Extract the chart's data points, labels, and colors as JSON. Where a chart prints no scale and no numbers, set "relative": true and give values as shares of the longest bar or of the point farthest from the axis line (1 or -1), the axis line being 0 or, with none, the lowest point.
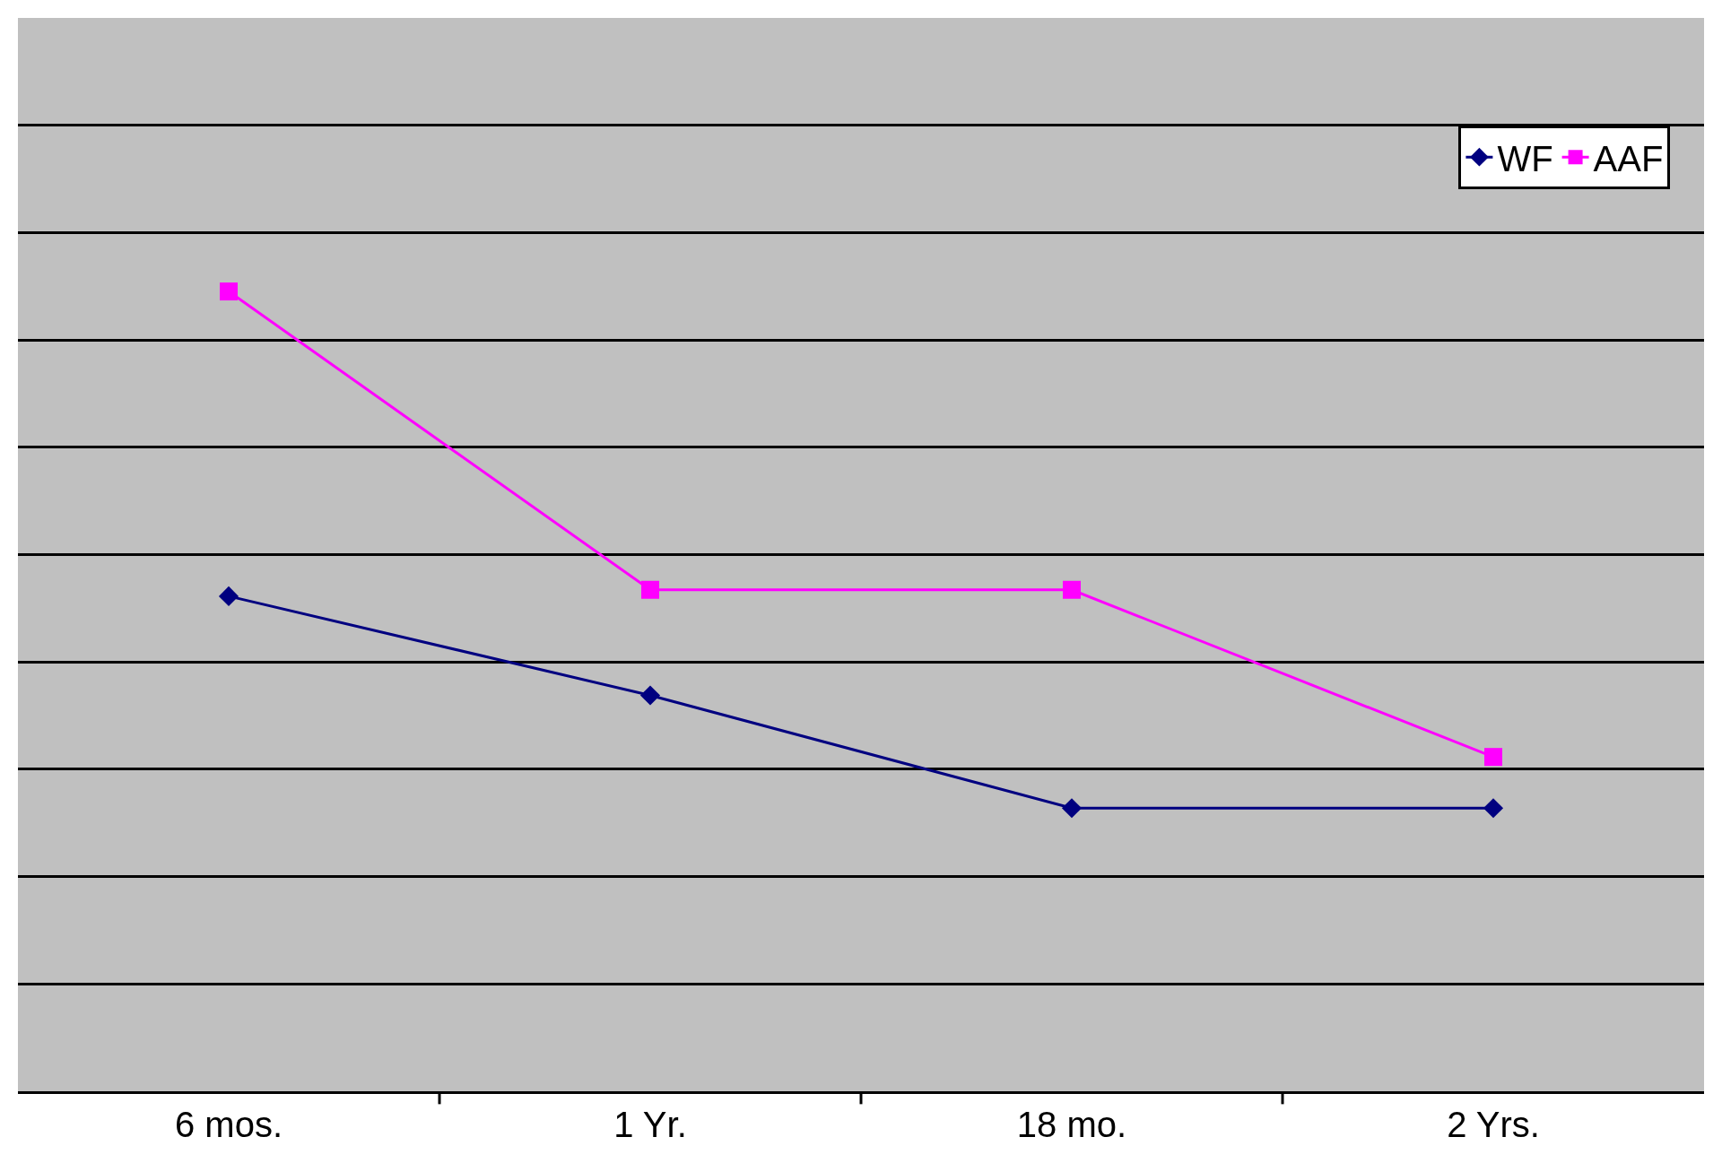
{
  "chart_data": {
    "type": "line",
    "relative": true,
    "categories": [
      "6 mos.",
      "1 Yr.",
      "18 mo.",
      "2 Yrs."
    ],
    "series": [
      {
        "name": "WF",
        "color": "#000080",
        "marker": "diamond",
        "values": [
          0.619,
          0.495,
          0.354,
          0.354
        ]
      },
      {
        "name": "AAF",
        "color": "#ff00ff",
        "marker": "square",
        "values": [
          1,
          0.627,
          0.627,
          0.418
        ]
      }
    ],
    "grid": "y",
    "legend": "top right",
    "line_style": "solid"
  }
}
